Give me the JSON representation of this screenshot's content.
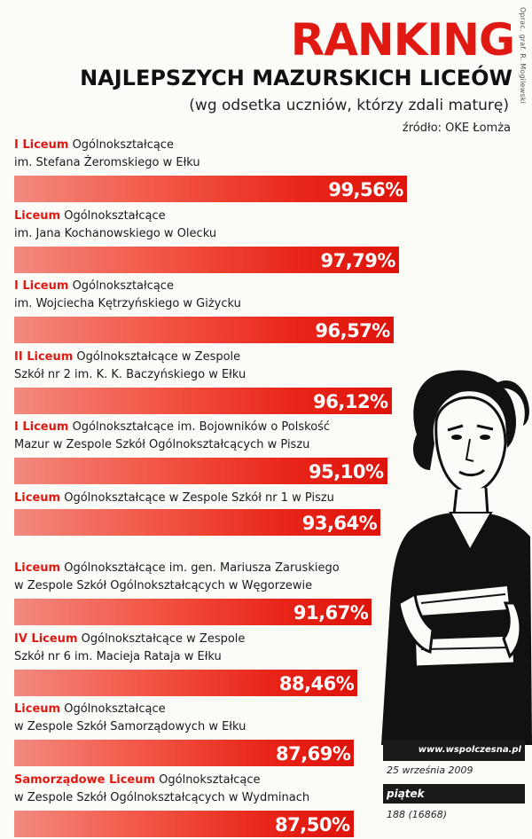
{
  "header": {
    "title": "RANKING",
    "subtitle": "NAJLEPSZYCH MAZURSKICH LICEÓW",
    "note": "(wg odsetka uczniów, którzy zdali maturę)",
    "source": "źródło: OKE Łomża",
    "credit": "Oprac. graf. R. Mogilewski"
  },
  "chart_data": {
    "type": "bar",
    "orientation": "horizontal",
    "title": "RANKING NAJLEPSZYCH MAZURSKICH LICEÓW",
    "subtitle": "(wg odsetka uczniów, którzy zdali maturę)",
    "source": "źródło: OKE Łomża",
    "unit": "%",
    "xlim": [
      0,
      100
    ],
    "grid": false,
    "legend": "none",
    "bar_color": "#e01a12",
    "label_accent_color": "#e01a12",
    "categories": [
      {
        "lead": "I Liceum",
        "rest": " Ogólnokształcące",
        "line2": "im. Stefana Żeromskiego w Ełku"
      },
      {
        "lead": "Liceum",
        "rest": " Ogólnokształcące",
        "line2": "im. Jana Kochanowskiego w Olecku"
      },
      {
        "lead": "I Liceum",
        "rest": " Ogólnokształcące",
        "line2": "im. Wojciecha Kętrzyńskiego w Giżycku"
      },
      {
        "lead": "II Liceum",
        "rest": " Ogólnokształcące w Zespole",
        "line2": "Szkół nr 2 im. K. K. Baczyńskiego w Ełku"
      },
      {
        "lead": "I Liceum",
        "rest": " Ogólnokształcące im. Bojowników o Polskość",
        "line2": "Mazur w Zespole Szkół Ogólnokształcących w Piszu"
      },
      {
        "lead": "Liceum",
        "rest": " Ogólnokształcące w Zespole Szkół nr 1 w Piszu",
        "line2": ""
      },
      {
        "lead": "Liceum",
        "rest": " Ogólnokształcące im. gen. Mariusza Zaruskiego",
        "line2": "w Zespole Szkół Ogólnokształcących w Węgorzewie"
      },
      {
        "lead": "IV Liceum",
        "rest": " Ogólnokształcące w Zespole",
        "line2": "Szkół nr 6 im. Macieja Rataja w Ełku"
      },
      {
        "lead": "Liceum",
        "rest": " Ogólnokształcące",
        "line2": "w Zespole Szkół Samorządowych w Ełku"
      },
      {
        "lead": "Samorządowe Liceum",
        "rest": " Ogólnokształcące",
        "line2": "w Zespole Szkół Ogólnokształcących w Wydminach"
      }
    ],
    "values": [
      99.56,
      97.79,
      96.57,
      96.12,
      95.1,
      93.64,
      91.67,
      88.46,
      87.69,
      87.5
    ],
    "value_labels": [
      "99,56%",
      "97,79%",
      "96,57%",
      "96,12%",
      "95,10%",
      "93,64%",
      "91,67%",
      "88,46%",
      "87,69%",
      "87,50%"
    ]
  },
  "footer": {
    "website": "www.wspolczesna.pl",
    "date": "25 września 2009",
    "day": "piątek",
    "issue": "188 (16868)"
  },
  "illustration": {
    "icon": "woman-holding-books-illustration"
  }
}
